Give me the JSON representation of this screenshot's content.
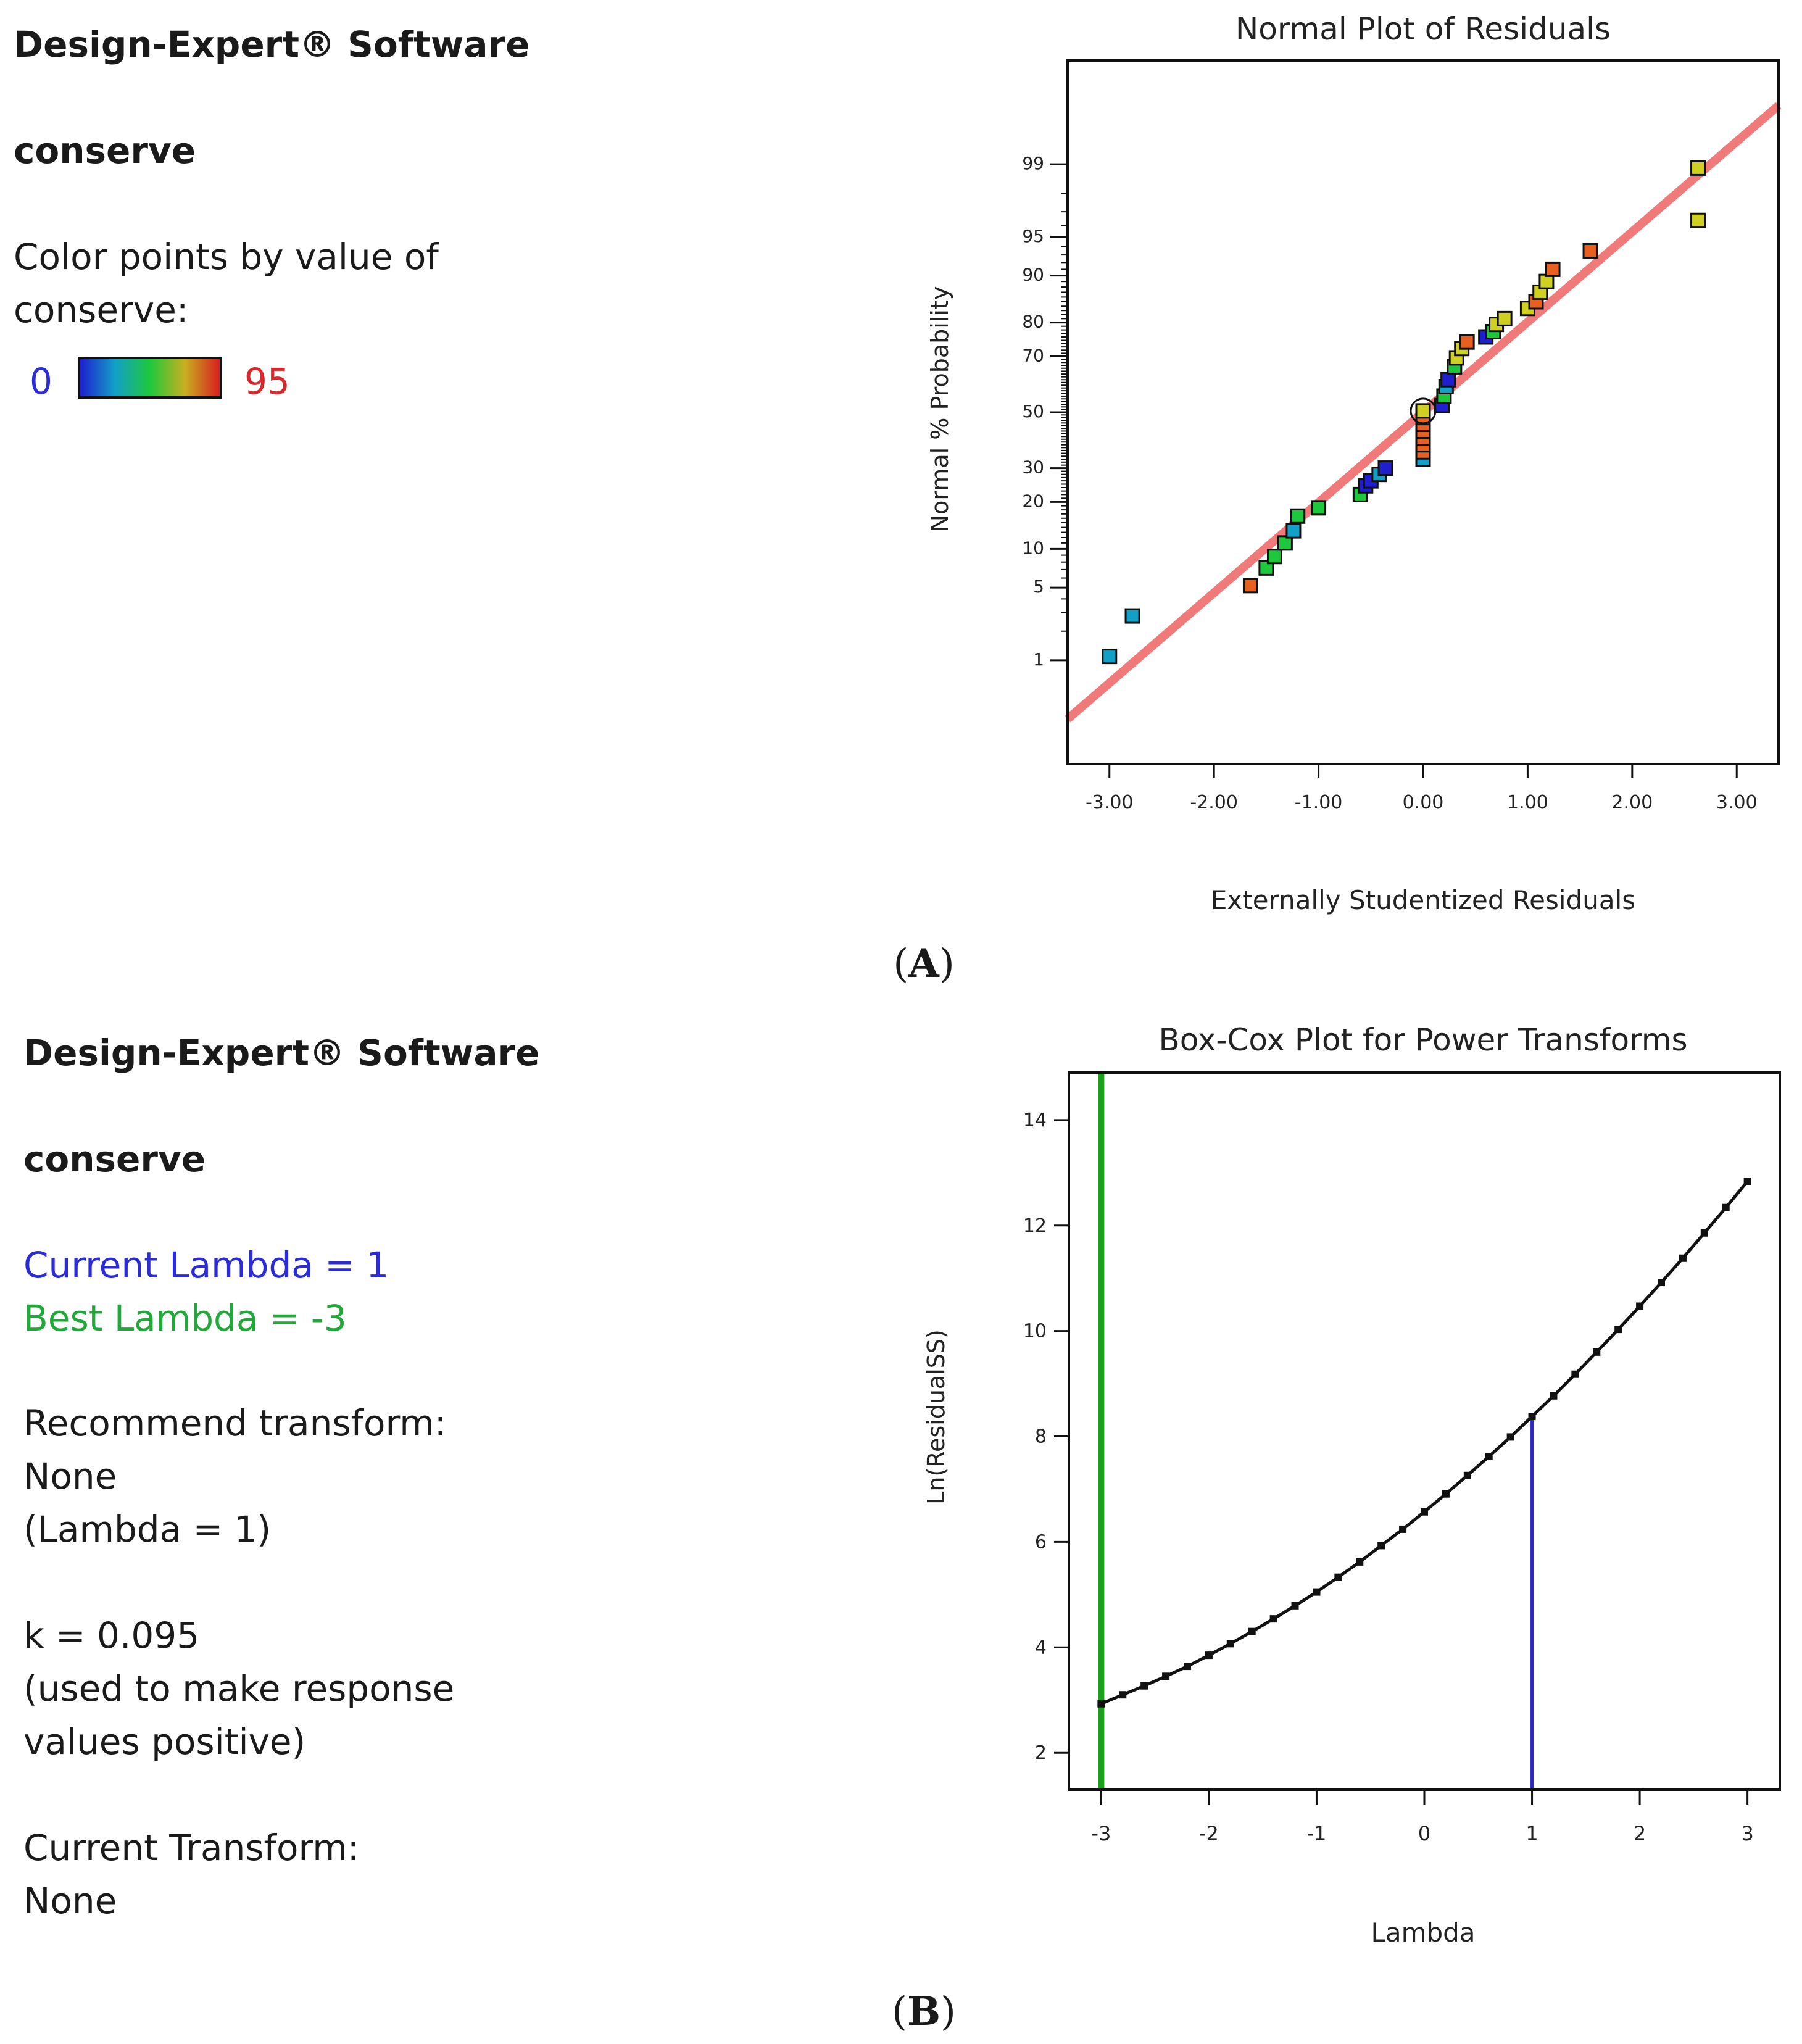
{
  "panel_a": {
    "software_title": "Design-Expert® Software",
    "response_name": "conserve",
    "color_caption_line1": "Color points by value of",
    "color_caption_line2": "conserve:",
    "scale_min": "0",
    "scale_max": "95",
    "panel_label_open": "(",
    "panel_label_letter": "A",
    "panel_label_close": ")"
  },
  "panel_b": {
    "software_title": "Design-Expert® Software",
    "response_name": "conserve",
    "current_lambda": "Current Lambda = 1",
    "best_lambda": "Best Lambda = -3",
    "recommend_label": "Recommend transform:",
    "recommend_value": "None",
    "recommend_lambda": "(Lambda = 1)",
    "k_value": "k = 0.095",
    "k_note_line1": "(used to make response",
    "k_note_line2": "values positive)",
    "current_transform_label": "Current Transform:",
    "current_transform_value": "None",
    "panel_label_open": "(",
    "panel_label_letter": "B",
    "panel_label_close": ")"
  },
  "colors": {
    "scale": [
      "#1f1fd0",
      "#11a0c8",
      "#1ec83c",
      "#d0d020",
      "#e86020",
      "#d81e1e"
    ],
    "fit_line": "#f07a7a",
    "best_lambda_line": "#1aa01a",
    "current_lambda_line": "#2a2ad0",
    "curve": "#111111"
  },
  "chart_data": [
    {
      "type": "scatter",
      "title": "Normal Plot of Residuals",
      "xlabel": "Externally Studentized Residuals",
      "ylabel": "Normal % Probability",
      "xlim": [
        -3.4,
        3.4
      ],
      "xticks": [
        -3,
        -2,
        -1,
        0,
        1,
        2,
        3
      ],
      "xtick_labels": [
        "-3.00",
        "-2.00",
        "-1.00",
        "0.00",
        "1.00",
        "2.00",
        "3.00"
      ],
      "yticks": [
        1,
        5,
        10,
        20,
        30,
        50,
        70,
        80,
        90,
        95,
        99
      ],
      "ytick_labels": [
        "1",
        "5",
        "10",
        "20",
        "30",
        "50",
        "70",
        "80",
        "90",
        "95",
        "99"
      ],
      "fit_line": {
        "from": [
          -3.4,
          0.2
        ],
        "to": [
          3.4,
          99.8
        ]
      },
      "points": [
        {
          "x": -3.0,
          "y": 1.1,
          "c": 1
        },
        {
          "x": -2.78,
          "y": 2.8,
          "c": 1
        },
        {
          "x": -1.65,
          "y": 5.2,
          "c": 4
        },
        {
          "x": -1.5,
          "y": 7.2,
          "c": 2
        },
        {
          "x": -1.42,
          "y": 8.8,
          "c": 2
        },
        {
          "x": -1.32,
          "y": 11.0,
          "c": 2
        },
        {
          "x": -1.24,
          "y": 13.3,
          "c": 1
        },
        {
          "x": -1.2,
          "y": 16.5,
          "c": 2
        },
        {
          "x": -1.0,
          "y": 18.5,
          "c": 2
        },
        {
          "x": -0.6,
          "y": 22.0,
          "c": 2
        },
        {
          "x": -0.55,
          "y": 24.5,
          "c": 0
        },
        {
          "x": -0.5,
          "y": 26.0,
          "c": 0
        },
        {
          "x": -0.42,
          "y": 28.0,
          "c": 1
        },
        {
          "x": -0.36,
          "y": 30.0,
          "c": 0
        },
        {
          "x": 0.0,
          "y": 33.0,
          "c": 1
        },
        {
          "x": 0.0,
          "y": 35.5,
          "c": 4
        },
        {
          "x": 0.0,
          "y": 38.0,
          "c": 4
        },
        {
          "x": 0.0,
          "y": 40.5,
          "c": 4
        },
        {
          "x": 0.0,
          "y": 43.0,
          "c": 4
        },
        {
          "x": 0.0,
          "y": 45.5,
          "c": 4
        },
        {
          "x": 0.0,
          "y": 48.0,
          "c": 4
        },
        {
          "x": 0.0,
          "y": 50.5,
          "c": 3
        },
        {
          "x": 0.18,
          "y": 52.5,
          "c": 0
        },
        {
          "x": 0.2,
          "y": 56.0,
          "c": 2
        },
        {
          "x": 0.22,
          "y": 59.5,
          "c": 1
        },
        {
          "x": 0.24,
          "y": 62.0,
          "c": 0
        },
        {
          "x": 0.3,
          "y": 66.5,
          "c": 2
        },
        {
          "x": 0.32,
          "y": 69.5,
          "c": 3
        },
        {
          "x": 0.37,
          "y": 72.5,
          "c": 3
        },
        {
          "x": 0.42,
          "y": 74.5,
          "c": 4
        },
        {
          "x": 0.6,
          "y": 76.0,
          "c": 0
        },
        {
          "x": 0.67,
          "y": 77.5,
          "c": 2
        },
        {
          "x": 0.7,
          "y": 79.5,
          "c": 3
        },
        {
          "x": 0.78,
          "y": 81.0,
          "c": 3
        },
        {
          "x": 1.0,
          "y": 83.5,
          "c": 3
        },
        {
          "x": 1.08,
          "y": 85.0,
          "c": 4
        },
        {
          "x": 1.12,
          "y": 87.0,
          "c": 3
        },
        {
          "x": 1.18,
          "y": 89.0,
          "c": 3
        },
        {
          "x": 1.24,
          "y": 91.0,
          "c": 4
        },
        {
          "x": 1.6,
          "y": 93.5,
          "c": 4
        },
        {
          "x": 2.63,
          "y": 96.4,
          "c": 3
        },
        {
          "x": 2.63,
          "y": 98.9,
          "c": 3
        }
      ]
    },
    {
      "type": "line",
      "title": "Box-Cox Plot for Power Transforms",
      "xlabel": "Lambda",
      "ylabel": "Ln(ResidualSS)",
      "xlim": [
        -3.3,
        3.3
      ],
      "ylim": [
        1.3,
        14.9
      ],
      "xticks": [
        -3,
        -2,
        -1,
        0,
        1,
        2,
        3
      ],
      "xtick_labels": [
        "-3",
        "-2",
        "-1",
        "0",
        "1",
        "2",
        "3"
      ],
      "yticks": [
        2,
        4,
        6,
        8,
        10,
        12,
        14
      ],
      "ytick_labels": [
        "2",
        "4",
        "6",
        "8",
        "10",
        "12",
        "14"
      ],
      "best_lambda": -3,
      "current_lambda": 1,
      "curve": {
        "x": [
          -3.0,
          -2.8,
          -2.6,
          -2.4,
          -2.2,
          -2.0,
          -1.8,
          -1.6,
          -1.4,
          -1.2,
          -1.0,
          -0.8,
          -0.6,
          -0.4,
          -0.2,
          0.0,
          0.2,
          0.4,
          0.6,
          0.8,
          1.0,
          1.2,
          1.4,
          1.6,
          1.8,
          2.0,
          2.2,
          2.4,
          2.6,
          2.8,
          3.0
        ],
        "y": [
          2.93,
          3.1,
          3.27,
          3.45,
          3.64,
          3.85,
          4.07,
          4.3,
          4.54,
          4.79,
          5.05,
          5.33,
          5.62,
          5.93,
          6.24,
          6.57,
          6.91,
          7.26,
          7.62,
          7.99,
          8.38,
          8.77,
          9.18,
          9.6,
          10.03,
          10.47,
          10.92,
          11.38,
          11.86,
          12.34,
          12.84
        ]
      }
    }
  ]
}
